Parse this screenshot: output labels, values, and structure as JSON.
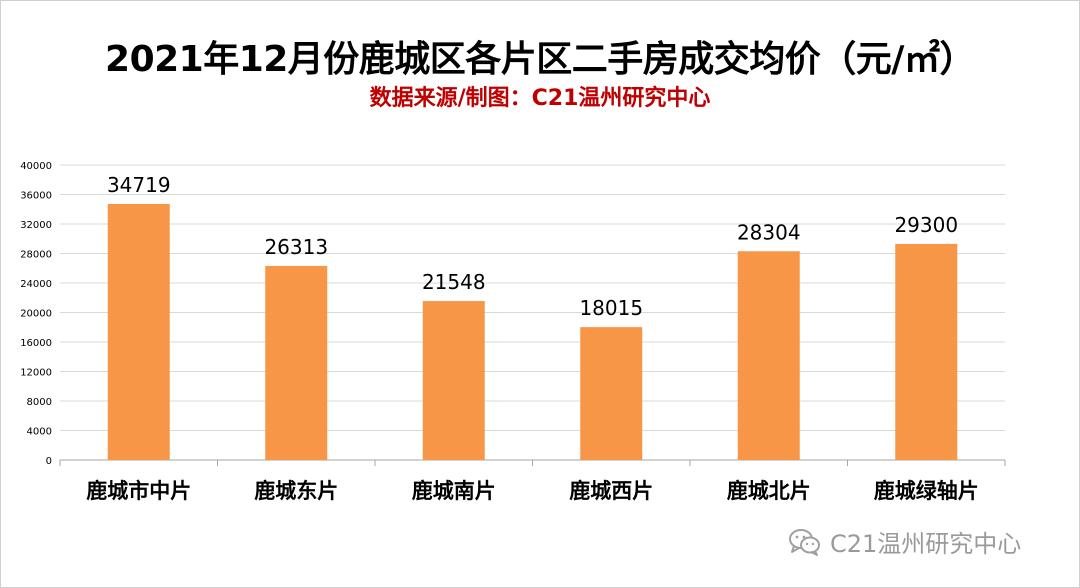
{
  "title": "2021年12月份鹿城区各片区二手房成交均价（元/㎡）",
  "subtitle": "数据来源/制图：C21温州研究中心",
  "watermark": "C21温州研究中心",
  "colors": {
    "bar": "#F79646",
    "subtitle": "#C00000",
    "gridline": "#D9D9D9",
    "axis": "#A6A6A6"
  },
  "chart_data": {
    "type": "bar",
    "categories": [
      "鹿城市中片",
      "鹿城东片",
      "鹿城南片",
      "鹿城西片",
      "鹿城北片",
      "鹿城绿轴片"
    ],
    "values": [
      34719,
      26313,
      21548,
      18015,
      28304,
      29300
    ],
    "data_labels": [
      "34719",
      "26313",
      "21548",
      "18015",
      "28304",
      "29300"
    ],
    "yticks": [
      "0",
      "4000",
      "8000",
      "12000",
      "16000",
      "20000",
      "24000",
      "28000",
      "32000",
      "36000",
      "40000"
    ],
    "ylim": [
      0,
      40000
    ],
    "grid": true,
    "legend": false
  }
}
